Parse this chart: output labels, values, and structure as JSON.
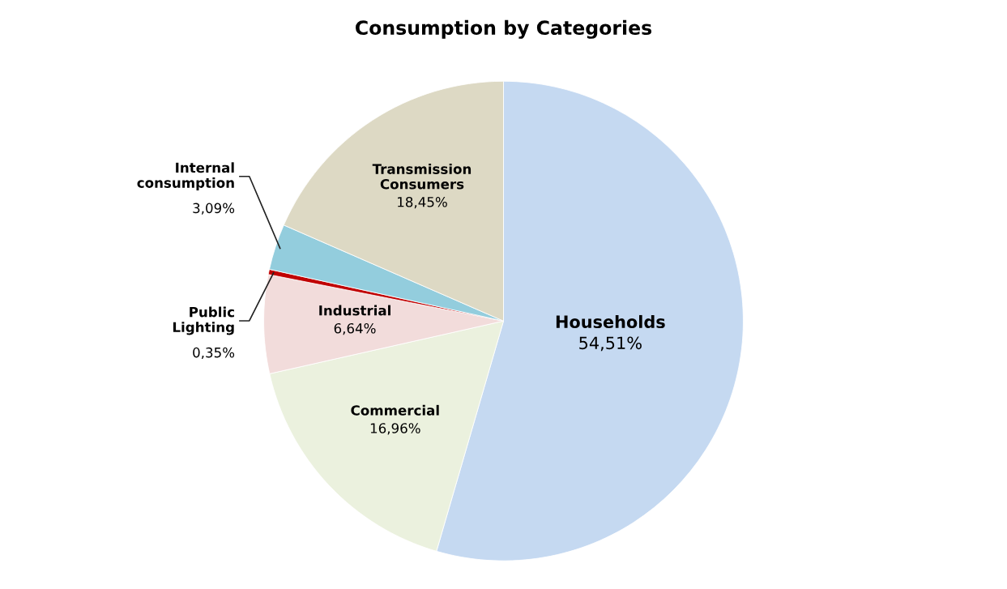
{
  "chart_data": {
    "type": "pie",
    "title": "Consumption by Categories",
    "categories": [
      "Households",
      "Commercial",
      "Industrial",
      "Public Lighting",
      "Internal consumption",
      "Transmission Consumers"
    ],
    "values": [
      54.51,
      16.96,
      6.64,
      0.35,
      3.09,
      18.45
    ],
    "value_labels": [
      "54,51%",
      "16,96%",
      "6,64%",
      "0,35%",
      "3,09%",
      "18,45%"
    ],
    "colors": [
      "#c5d9f1",
      "#ebf1de",
      "#f2dcdb",
      "#c00000",
      "#93cddd",
      "#ddd9c4"
    ],
    "legend": false
  }
}
